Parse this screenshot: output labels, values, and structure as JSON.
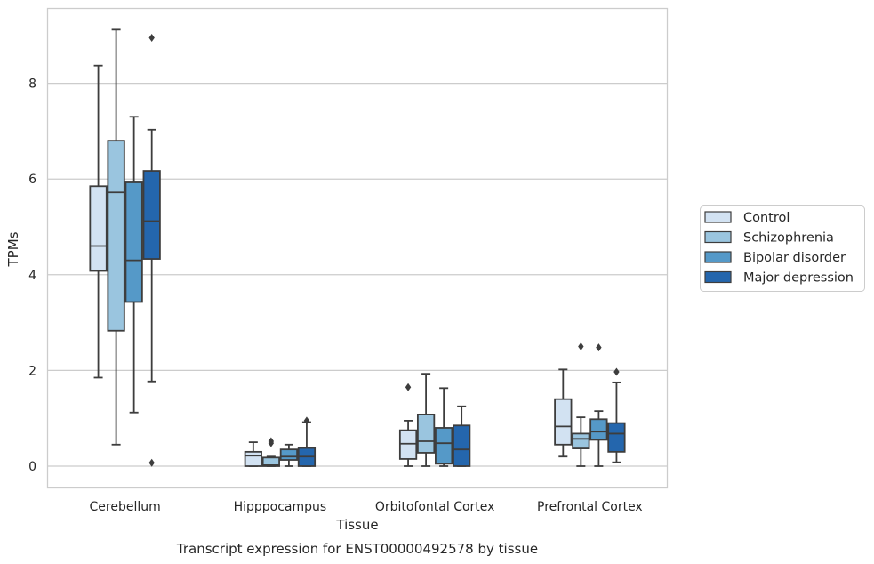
{
  "chart_data": {
    "type": "box",
    "caption": "Transcript expression for ENST00000492578 by tissue",
    "xlabel": "Tissue",
    "ylabel": "TPMs",
    "ylim": [
      -0.45,
      9.6
    ],
    "yticks": [
      0,
      2,
      4,
      6,
      8
    ],
    "grid": "horizontal",
    "legend_position": "right",
    "categories": [
      "Cerebellum",
      "Hipppocampus",
      "Orbitofontal Cortex",
      "Prefrontal Cortex"
    ],
    "series": [
      {
        "name": "Control",
        "color": "#d2e2f2",
        "boxes": [
          {
            "whislo": 1.85,
            "q1": 4.08,
            "med": 4.6,
            "q3": 5.85,
            "whishi": 8.37,
            "fliers": []
          },
          {
            "whislo": 0.0,
            "q1": 0.0,
            "med": 0.22,
            "q3": 0.3,
            "whishi": 0.5,
            "fliers": []
          },
          {
            "whislo": 0.0,
            "q1": 0.15,
            "med": 0.47,
            "q3": 0.75,
            "whishi": 0.95,
            "fliers": [
              1.65
            ]
          },
          {
            "whislo": 0.2,
            "q1": 0.45,
            "med": 0.83,
            "q3": 1.4,
            "whishi": 2.02,
            "fliers": []
          }
        ]
      },
      {
        "name": "Schizophrenia",
        "color": "#9ac5df",
        "boxes": [
          {
            "whislo": 0.45,
            "q1": 2.83,
            "med": 5.72,
            "q3": 6.8,
            "whishi": 9.12,
            "fliers": []
          },
          {
            "whislo": 0.0,
            "q1": 0.0,
            "med": 0.02,
            "q3": 0.18,
            "whishi": 0.2,
            "fliers": [
              0.48,
              0.52
            ]
          },
          {
            "whislo": 0.0,
            "q1": 0.28,
            "med": 0.52,
            "q3": 1.08,
            "whishi": 1.93,
            "fliers": []
          },
          {
            "whislo": 0.0,
            "q1": 0.37,
            "med": 0.57,
            "q3": 0.68,
            "whishi": 1.02,
            "fliers": [
              2.5
            ]
          }
        ]
      },
      {
        "name": "Bipolar disorder",
        "color": "#5599c8",
        "boxes": [
          {
            "whislo": 1.12,
            "q1": 3.43,
            "med": 4.3,
            "q3": 5.93,
            "whishi": 7.3,
            "fliers": []
          },
          {
            "whislo": 0.0,
            "q1": 0.13,
            "med": 0.2,
            "q3": 0.35,
            "whishi": 0.45,
            "fliers": []
          },
          {
            "whislo": 0.0,
            "q1": 0.05,
            "med": 0.48,
            "q3": 0.8,
            "whishi": 1.63,
            "fliers": []
          },
          {
            "whislo": 0.0,
            "q1": 0.55,
            "med": 0.72,
            "q3": 0.98,
            "whishi": 1.15,
            "fliers": [
              2.48
            ]
          }
        ]
      },
      {
        "name": "Major depression",
        "color": "#2466ad",
        "boxes": [
          {
            "whislo": 1.77,
            "q1": 4.33,
            "med": 5.12,
            "q3": 6.17,
            "whishi": 7.03,
            "fliers": [
              8.95,
              0.07
            ]
          },
          {
            "whislo": 0.0,
            "q1": 0.0,
            "med": 0.2,
            "q3": 0.38,
            "whishi": 0.92,
            "fliers": [
              0.95
            ]
          },
          {
            "whislo": 0.0,
            "q1": 0.0,
            "med": 0.35,
            "q3": 0.85,
            "whishi": 1.25,
            "fliers": []
          },
          {
            "whislo": 0.08,
            "q1": 0.3,
            "med": 0.68,
            "q3": 0.9,
            "whishi": 1.75,
            "fliers": [
              1.97
            ]
          }
        ]
      }
    ]
  }
}
